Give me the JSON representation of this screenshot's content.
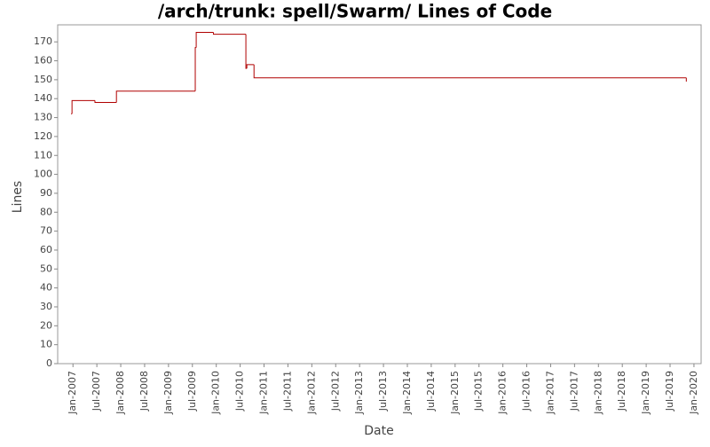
{
  "chart_data": {
    "type": "step",
    "title": "/arch/trunk: spell/Swarm/ Lines of Code",
    "x_label": "Date",
    "y_label": "Lines",
    "series": [
      {
        "name": "Lines",
        "color": "#b00000",
        "x": [
          2006.96,
          2006.98,
          2007.46,
          2007.91,
          2009.56,
          2009.58,
          2009.94,
          2010.62,
          2010.64,
          2010.79,
          2019.84
        ],
        "values": [
          132,
          139,
          138,
          144,
          167,
          175,
          174,
          156,
          158,
          151,
          149
        ]
      }
    ],
    "xlim": [
      2006.68,
      2020.15
    ],
    "ylim": [
      0,
      179
    ],
    "yticks": [
      0,
      10,
      20,
      30,
      40,
      50,
      60,
      70,
      80,
      90,
      100,
      110,
      120,
      130,
      140,
      150,
      160,
      170
    ],
    "xticks": [
      {
        "value": 2007,
        "label": "Jan-2007"
      },
      {
        "value": 2007.5,
        "label": "Jul-2007"
      },
      {
        "value": 2008,
        "label": "Jan-2008"
      },
      {
        "value": 2008.5,
        "label": "Jul-2008"
      },
      {
        "value": 2009,
        "label": "Jan-2009"
      },
      {
        "value": 2009.5,
        "label": "Jul-2009"
      },
      {
        "value": 2010,
        "label": "Jan-2010"
      },
      {
        "value": 2010.5,
        "label": "Jul-2010"
      },
      {
        "value": 2011,
        "label": "Jan-2011"
      },
      {
        "value": 2011.5,
        "label": "Jul-2011"
      },
      {
        "value": 2012,
        "label": "Jan-2012"
      },
      {
        "value": 2012.5,
        "label": "Jul-2012"
      },
      {
        "value": 2013,
        "label": "Jan-2013"
      },
      {
        "value": 2013.5,
        "label": "Jul-2013"
      },
      {
        "value": 2014,
        "label": "Jan-2014"
      },
      {
        "value": 2014.5,
        "label": "Jul-2014"
      },
      {
        "value": 2015,
        "label": "Jan-2015"
      },
      {
        "value": 2015.5,
        "label": "Jul-2015"
      },
      {
        "value": 2016,
        "label": "Jan-2016"
      },
      {
        "value": 2016.5,
        "label": "Jul-2016"
      },
      {
        "value": 2017,
        "label": "Jan-2017"
      },
      {
        "value": 2017.5,
        "label": "Jul-2017"
      },
      {
        "value": 2018,
        "label": "Jan-2018"
      },
      {
        "value": 2018.5,
        "label": "Jul-2018"
      },
      {
        "value": 2019,
        "label": "Jan-2019"
      },
      {
        "value": 2019.5,
        "label": "Jul-2019"
      },
      {
        "value": 2020,
        "label": "Jan-2020"
      }
    ],
    "grid": false
  }
}
